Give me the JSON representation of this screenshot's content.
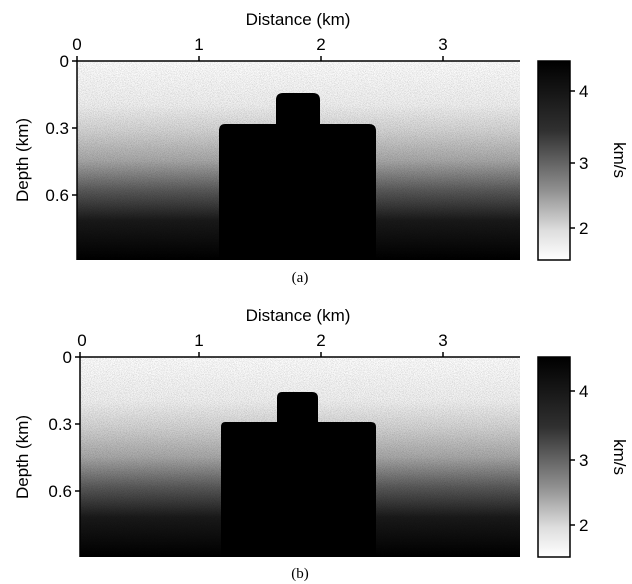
{
  "panels": [
    {
      "caption": "(a)",
      "x_axis_title": "Distance (km)",
      "y_axis_title": "Depth (km)",
      "x_ticks": [
        "0",
        "1",
        "2",
        "3"
      ],
      "y_ticks": [
        "0",
        "0.3",
        "0.6"
      ],
      "colorbar_label": "km/s",
      "colorbar_ticks": [
        "4",
        "3",
        "2"
      ]
    },
    {
      "caption": "(b)",
      "x_axis_title": "Distance (km)",
      "y_axis_title": "Depth (km)",
      "x_ticks": [
        "0",
        "1",
        "2",
        "3"
      ],
      "y_ticks": [
        "0",
        "0.3",
        "0.6"
      ],
      "colorbar_label": "km/s",
      "colorbar_ticks": [
        "4",
        "3",
        "2"
      ]
    }
  ],
  "model": {
    "x_range_km": [
      0,
      3.6
    ],
    "depth_range_km": [
      0,
      0.9
    ],
    "velocity_range_kms": [
      1.5,
      4.5
    ],
    "background_velocity": "increases with depth from about 1.5 km/s near surface to about 4.5 km/s at bottom",
    "salt_body": {
      "velocity_kms": 4.5,
      "lower_block_x_km": [
        1.15,
        2.45
      ],
      "lower_block_depth_km": [
        0.28,
        0.9
      ],
      "top_knob_x_km": [
        1.62,
        1.97
      ],
      "top_knob_depth_km": [
        0.13,
        0.28
      ]
    }
  },
  "colors": {
    "background": "#ffffff",
    "ink": "#000000",
    "high_velocity": "#000000",
    "low_velocity": "#ffffff"
  }
}
